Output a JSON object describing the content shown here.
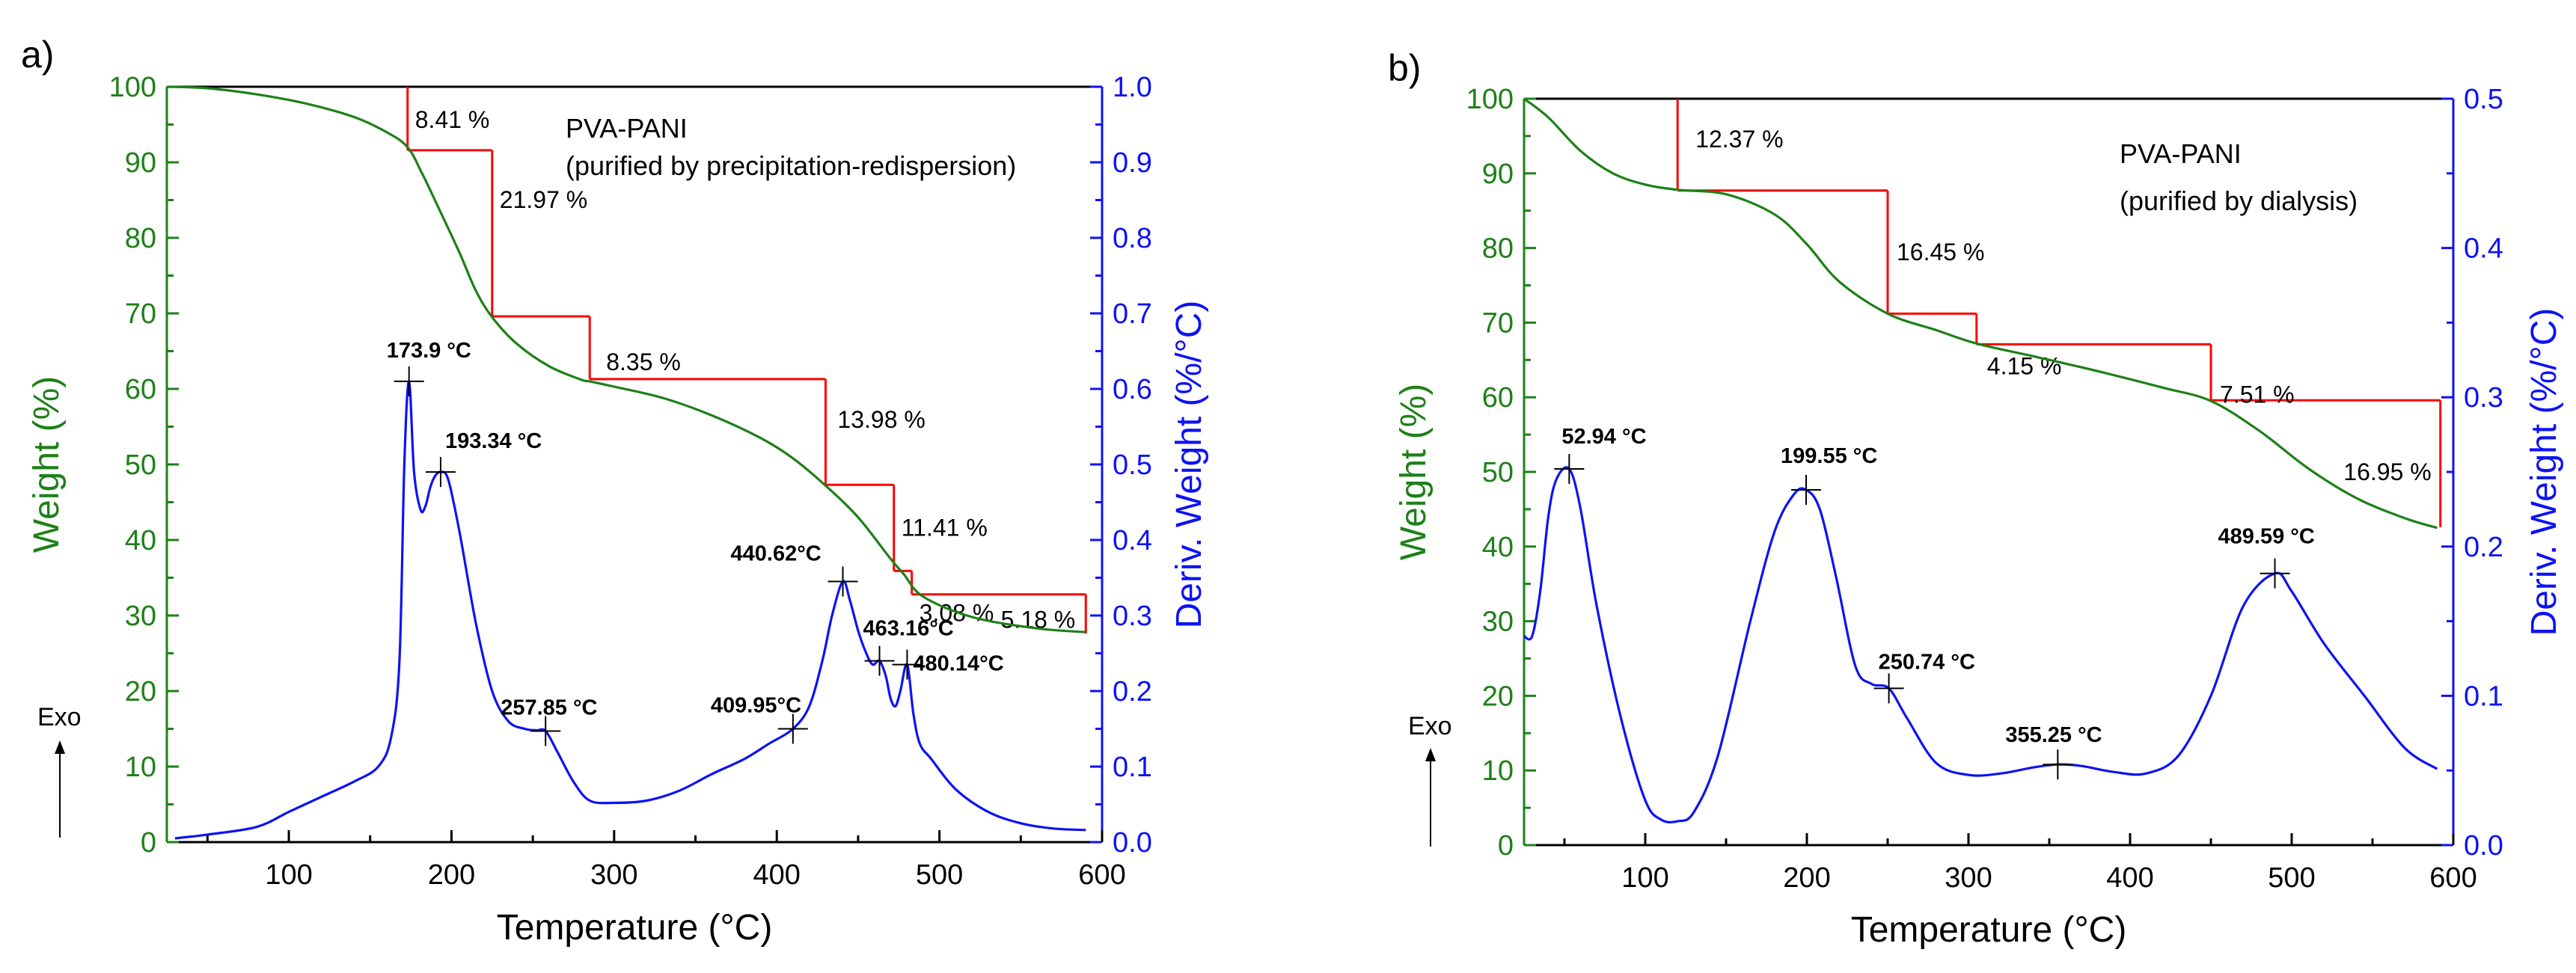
{
  "colors": {
    "weight": "#1e8018",
    "deriv": "#0d12f5",
    "steps": "#ff0000",
    "axis": "#000000"
  },
  "chart_data": [
    {
      "type": "line",
      "panel_label": "a)",
      "title_lines": [
        "PVA-PANI",
        "(purified by precipitation-redispersion)"
      ],
      "xlabel": "Temperature (°C)",
      "ylabel_left": "Weight (%)",
      "ylabel_right": "Deriv. Weight (%/°C)",
      "exo_label": "Exo",
      "xlim": [
        25,
        600
      ],
      "ylim_left": [
        0,
        100
      ],
      "ylim_right": [
        0,
        1.0
      ],
      "x_ticks": [
        "100",
        "200",
        "300",
        "400",
        "500",
        "600"
      ],
      "y_ticks_left": [
        "0",
        "10",
        "20",
        "30",
        "40",
        "50",
        "60",
        "70",
        "80",
        "90",
        "100"
      ],
      "y_ticks_right": [
        "0.0",
        "0.1",
        "0.2",
        "0.3",
        "0.4",
        "0.5",
        "0.6",
        "0.7",
        "0.8",
        "0.9",
        "1.0"
      ],
      "series": [
        {
          "name": "Weight (%)",
          "axis": "left",
          "x": [
            25,
            50,
            80,
            110,
            140,
            160,
            173,
            182,
            192,
            205,
            215,
            225,
            240,
            260,
            280,
            285,
            300,
            330,
            360,
            390,
            410,
            430,
            450,
            470,
            478,
            490,
            520,
            560,
            590
          ],
          "y": [
            100,
            99.8,
            99,
            97.8,
            96,
            94,
            92,
            88.5,
            84,
            78,
            73,
            69.5,
            66,
            63,
            61.2,
            61,
            60.3,
            58.8,
            56.5,
            53.5,
            50.8,
            47.2,
            43,
            37.5,
            35.5,
            32.5,
            29.8,
            28.3,
            27.8
          ]
        },
        {
          "name": "Deriv. Weight (%/°C)",
          "axis": "right",
          "x": [
            30,
            50,
            80,
            100,
            120,
            140,
            155,
            163,
            168,
            171,
            173.9,
            177,
            181,
            184,
            187,
            190,
            193.34,
            198,
            205,
            215,
            225,
            235,
            245,
            252,
            257.85,
            265,
            275,
            285,
            300,
            320,
            340,
            360,
            380,
            395,
            409.95,
            420,
            428,
            434,
            440.62,
            445,
            450,
            455,
            459,
            463.16,
            467,
            470,
            473,
            476,
            480.14,
            484,
            488,
            495,
            510,
            530,
            550,
            570,
            590
          ],
          "y": [
            0.005,
            0.01,
            0.02,
            0.04,
            0.06,
            0.08,
            0.1,
            0.14,
            0.24,
            0.5,
            0.61,
            0.49,
            0.44,
            0.445,
            0.47,
            0.485,
            0.49,
            0.48,
            0.41,
            0.29,
            0.2,
            0.16,
            0.15,
            0.148,
            0.147,
            0.12,
            0.08,
            0.055,
            0.052,
            0.055,
            0.068,
            0.09,
            0.11,
            0.13,
            0.15,
            0.18,
            0.24,
            0.3,
            0.345,
            0.32,
            0.28,
            0.25,
            0.235,
            0.24,
            0.22,
            0.19,
            0.18,
            0.2,
            0.235,
            0.17,
            0.13,
            0.11,
            0.07,
            0.04,
            0.025,
            0.018,
            0.016
          ]
        }
      ],
      "peaks": [
        {
          "x": 173.9,
          "y": 0.61,
          "label": "173.9 °C"
        },
        {
          "x": 193.34,
          "y": 0.49,
          "label": "193.34 °C"
        },
        {
          "x": 257.85,
          "y": 0.147,
          "label": "257.85 °C"
        },
        {
          "x": 409.95,
          "y": 0.15,
          "label": "409.95°C"
        },
        {
          "x": 440.62,
          "y": 0.345,
          "label": "440.62°C"
        },
        {
          "x": 463.16,
          "y": 0.24,
          "label": "463.16°C"
        },
        {
          "x": 480.14,
          "y": 0.235,
          "label": "480.14°C"
        }
      ],
      "steps": [
        {
          "x_start": 173,
          "x_end": 225,
          "top": 100,
          "bottom": 91.6,
          "label": "8.41 %"
        },
        {
          "x_start": 225,
          "x_end": 285,
          "top": 91.6,
          "bottom": 69.6,
          "label": "21.97 %"
        },
        {
          "x_start": 285,
          "x_end": 430,
          "top": 69.6,
          "bottom": 61.3,
          "label": "8.35 %"
        },
        {
          "x_start": 430,
          "x_end": 472,
          "top": 61.3,
          "bottom": 47.3,
          "label": "13.98 %"
        },
        {
          "x_start": 472,
          "x_end": 483,
          "top": 47.3,
          "bottom": 35.9,
          "label": "11.41 %"
        },
        {
          "x_start": 483,
          "x_end": 590,
          "top": 35.9,
          "bottom": 32.8,
          "label": "3.08 %"
        },
        {
          "x_start": 590,
          "x_end": 590,
          "top": 32.8,
          "bottom": 27.6,
          "label": "5.18 %"
        }
      ]
    },
    {
      "type": "line",
      "panel_label": "b)",
      "title_lines": [
        "PVA-PANI",
        "(purified by dialysis)"
      ],
      "xlabel": "Temperature (°C)",
      "ylabel_left": "Weight (%)",
      "ylabel_right": "Deriv. Weight (%/°C)",
      "exo_label": "Exo",
      "xlim": [
        25,
        600
      ],
      "ylim_left": [
        0,
        100
      ],
      "ylim_right": [
        0,
        0.5
      ],
      "x_ticks": [
        "100",
        "200",
        "300",
        "400",
        "500",
        "600"
      ],
      "y_ticks_left": [
        "0",
        "10",
        "20",
        "30",
        "40",
        "50",
        "60",
        "70",
        "80",
        "90",
        "100"
      ],
      "y_ticks_right": [
        "0.0",
        "0.1",
        "0.2",
        "0.3",
        "0.4",
        "0.5"
      ],
      "series": [
        {
          "name": "Weight (%)",
          "axis": "left",
          "x": [
            25,
            40,
            60,
            80,
            100,
            120,
            150,
            180,
            200,
            220,
            250,
            280,
            305,
            340,
            380,
            420,
            450,
            480,
            510,
            540,
            570,
            590
          ],
          "y": [
            100,
            97.5,
            93,
            90,
            88.5,
            87.8,
            87.2,
            84.5,
            80.5,
            75.5,
            71.2,
            69,
            67.2,
            65.5,
            63.5,
            61.3,
            59.5,
            55.5,
            50.5,
            46.5,
            43.8,
            42.5
          ]
        },
        {
          "name": "Deriv. Weight (%/°C)",
          "axis": "right",
          "x": [
            25,
            30,
            35,
            40,
            45,
            52.94,
            60,
            70,
            85,
            100,
            110,
            120,
            130,
            145,
            165,
            180,
            192,
            199.55,
            208,
            218,
            230,
            240,
            250.74,
            262,
            280,
            300,
            320,
            340,
            355.25,
            370,
            390,
            410,
            430,
            450,
            470,
            489.59,
            500,
            520,
            545,
            570,
            590
          ],
          "y": [
            0.14,
            0.14,
            0.17,
            0.22,
            0.245,
            0.252,
            0.225,
            0.16,
            0.085,
            0.03,
            0.017,
            0.016,
            0.022,
            0.06,
            0.15,
            0.21,
            0.235,
            0.238,
            0.225,
            0.18,
            0.12,
            0.108,
            0.105,
            0.085,
            0.055,
            0.047,
            0.048,
            0.052,
            0.054,
            0.053,
            0.049,
            0.048,
            0.06,
            0.1,
            0.16,
            0.182,
            0.17,
            0.135,
            0.1,
            0.065,
            0.051
          ]
        }
      ],
      "peaks": [
        {
          "x": 52.94,
          "y": 0.252,
          "label": "52.94 °C"
        },
        {
          "x": 199.55,
          "y": 0.238,
          "label": "199.55 °C"
        },
        {
          "x": 250.74,
          "y": 0.105,
          "label": "250.74 °C"
        },
        {
          "x": 355.25,
          "y": 0.054,
          "label": "355.25 °C"
        },
        {
          "x": 489.59,
          "y": 0.182,
          "label": "489.59 °C"
        }
      ],
      "steps": [
        {
          "x_start": 120,
          "x_end": 250,
          "top": 100,
          "bottom": 87.7,
          "label": "12.37 %"
        },
        {
          "x_start": 250,
          "x_end": 305,
          "top": 87.7,
          "bottom": 71.2,
          "label": "16.45 %"
        },
        {
          "x_start": 305,
          "x_end": 450,
          "top": 71.2,
          "bottom": 67.1,
          "label": "4.15 %"
        },
        {
          "x_start": 450,
          "x_end": 592,
          "top": 67.1,
          "bottom": 59.6,
          "label": "7.51 %"
        },
        {
          "x_start": 592,
          "x_end": 592,
          "top": 59.6,
          "bottom": 42.6,
          "label": "16.95 %"
        }
      ]
    }
  ]
}
